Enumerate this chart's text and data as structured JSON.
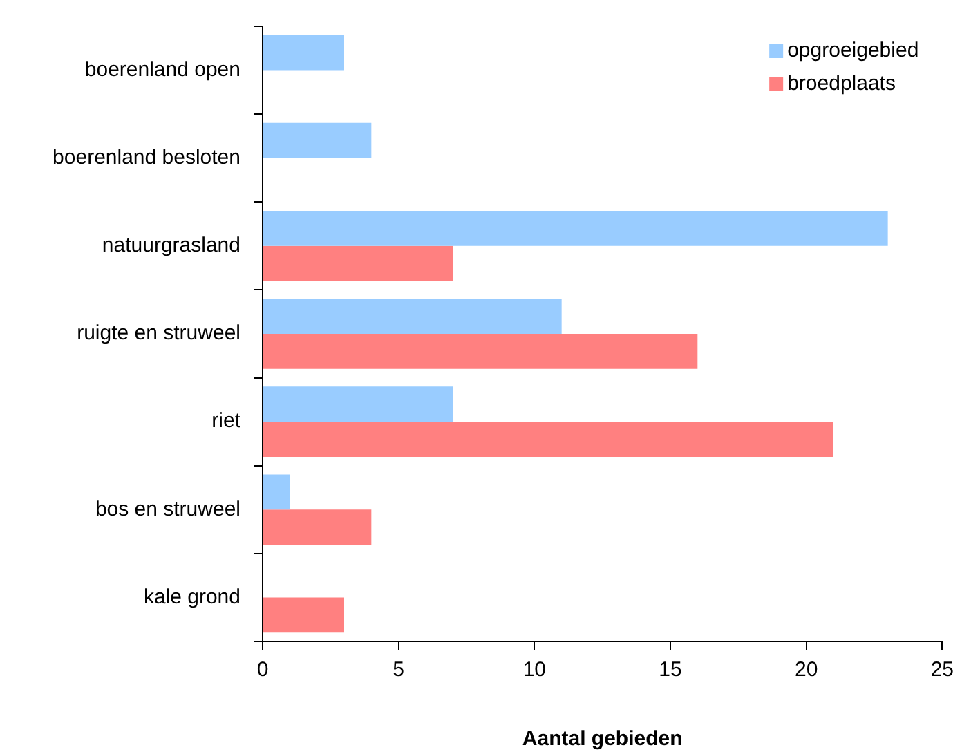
{
  "chart_data": {
    "type": "bar",
    "orientation": "horizontal",
    "xlabel": "Aantal gebieden",
    "categories": [
      "boerenland open",
      "boerenland besloten",
      "natuurgrasland",
      "ruigte en struweel",
      "riet",
      "bos en struweel",
      "kale grond"
    ],
    "series": [
      {
        "name": "opgroeigebied",
        "color": "#99ccff",
        "values": [
          3,
          4,
          23,
          11,
          7,
          1,
          null
        ]
      },
      {
        "name": "broedplaats",
        "color": "#ff8080",
        "values": [
          null,
          null,
          7,
          16,
          21,
          4,
          3
        ]
      }
    ],
    "xlim": [
      0,
      25
    ],
    "xticks": [
      0,
      5,
      10,
      15,
      20,
      25
    ],
    "grid": false,
    "legend": "top right"
  }
}
